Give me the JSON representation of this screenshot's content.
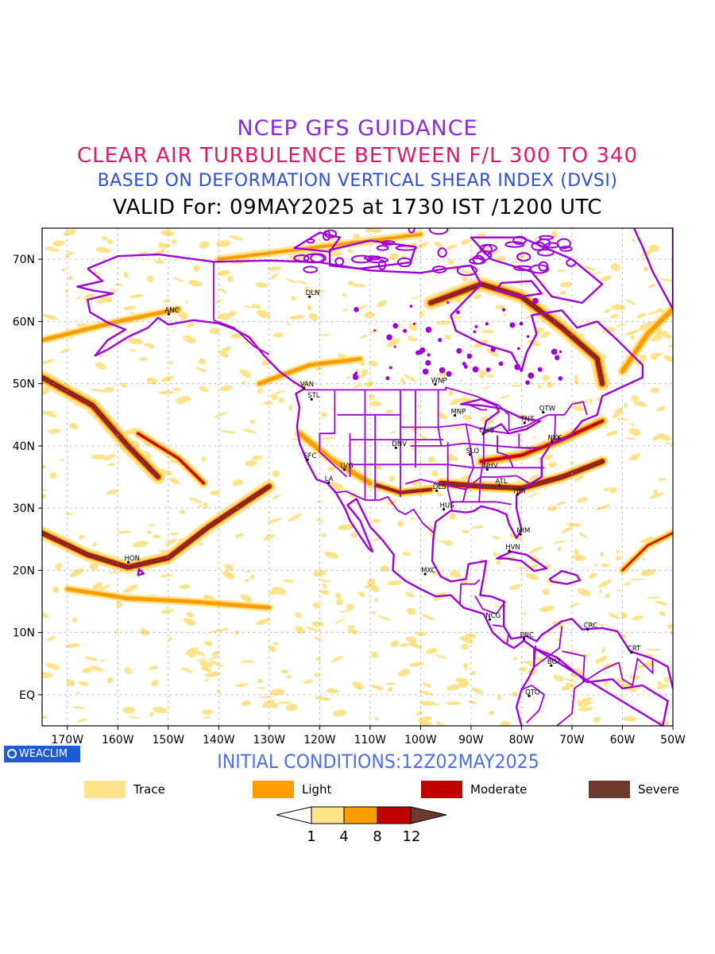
{
  "titles": {
    "line1": "NCEP GFS GUIDANCE",
    "line2": "CLEAR AIR TURBULENCE BETWEEN F/L 300 TO 340",
    "line3": "BASED ON DEFORMATION VERTICAL SHEAR INDEX (DVSI)",
    "line4": "VALID For: 09MAY2025 at 1730 IST /1200 UTC"
  },
  "colors": {
    "trace": "#ffe38a",
    "light": "#ff9d00",
    "moderate": "#c00000",
    "severe": "#6b3a2c",
    "boundary": "#a000d8",
    "land_state_line": "#a000d8"
  },
  "map": {
    "lon_range": [
      -175,
      -50
    ],
    "lat_range": [
      -5,
      75
    ],
    "lon_ticks": [
      "170W",
      "160W",
      "150W",
      "140W",
      "130W",
      "120W",
      "110W",
      "100W",
      "90W",
      "80W",
      "70W",
      "60W",
      "50W"
    ],
    "lat_ticks": [
      "70N",
      "60N",
      "50N",
      "40N",
      "30N",
      "20N",
      "10N",
      "EQ"
    ],
    "stations": [
      {
        "code": "ANC",
        "lon": -149.9,
        "lat": 61.2
      },
      {
        "code": "DLN",
        "lon": -122.0,
        "lat": 64.0
      },
      {
        "code": "VAN",
        "lon": -123.1,
        "lat": 49.3
      },
      {
        "code": "STL",
        "lon": -121.6,
        "lat": 47.5
      },
      {
        "code": "WNP",
        "lon": -97.1,
        "lat": 49.9
      },
      {
        "code": "MNP",
        "lon": -93.2,
        "lat": 44.9
      },
      {
        "code": "CHG",
        "lon": -87.6,
        "lat": 41.9
      },
      {
        "code": "TNT",
        "lon": -79.4,
        "lat": 43.7
      },
      {
        "code": "OTW",
        "lon": -75.7,
        "lat": 45.4
      },
      {
        "code": "NYK",
        "lon": -74.0,
        "lat": 40.7
      },
      {
        "code": "DNV",
        "lon": -104.9,
        "lat": 39.7
      },
      {
        "code": "SFC",
        "lon": -122.4,
        "lat": 37.8
      },
      {
        "code": "LVG",
        "lon": -115.1,
        "lat": 36.2
      },
      {
        "code": "LA",
        "lon": -118.2,
        "lat": 34.1
      },
      {
        "code": "SLO",
        "lon": -90.2,
        "lat": 38.6
      },
      {
        "code": "NHV",
        "lon": -86.8,
        "lat": 36.2
      },
      {
        "code": "ATL",
        "lon": -84.4,
        "lat": 33.7
      },
      {
        "code": "DLS",
        "lon": -96.8,
        "lat": 32.8
      },
      {
        "code": "HHI",
        "lon": -80.8,
        "lat": 32.2
      },
      {
        "code": "HUS",
        "lon": -95.4,
        "lat": 29.8
      },
      {
        "code": "MIM",
        "lon": -80.2,
        "lat": 25.8
      },
      {
        "code": "HVN",
        "lon": -82.4,
        "lat": 23.1
      },
      {
        "code": "HON",
        "lon": -157.9,
        "lat": 21.3
      },
      {
        "code": "MXC",
        "lon": -99.1,
        "lat": 19.4
      },
      {
        "code": "NCG",
        "lon": -86.3,
        "lat": 12.1
      },
      {
        "code": "PNC",
        "lon": -79.5,
        "lat": 9.0
      },
      {
        "code": "CRC",
        "lon": -66.9,
        "lat": 10.5
      },
      {
        "code": "BGT",
        "lon": -74.1,
        "lat": 4.7
      },
      {
        "code": "QTO",
        "lon": -78.5,
        "lat": -0.2
      },
      {
        "code": "CRT",
        "lon": -58.2,
        "lat": 6.8
      }
    ]
  },
  "badge": {
    "label": "WEACLIM"
  },
  "initial_conditions": "INITIAL CONDITIONS:12Z02MAY2025",
  "legend": [
    {
      "label": "Trace",
      "color": "#ffe38a"
    },
    {
      "label": "Light",
      "color": "#ff9d00"
    },
    {
      "label": "Moderate",
      "color": "#c00000"
    },
    {
      "label": "Severe",
      "color": "#6b3a2c"
    }
  ],
  "colorbar": {
    "ticks": [
      "1",
      "4",
      "8",
      "12"
    ],
    "colors": [
      "#ffffff",
      "#ffe38a",
      "#ff9d00",
      "#c00000",
      "#6b3a2c"
    ]
  }
}
